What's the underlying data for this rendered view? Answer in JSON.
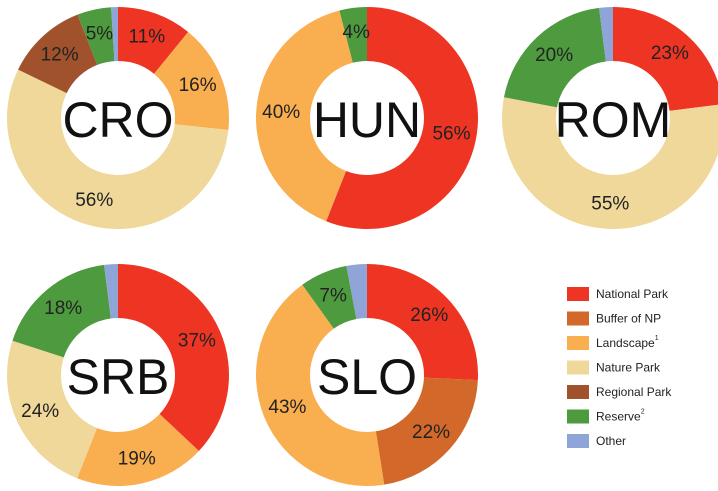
{
  "chart_data": [
    {
      "type": "pie",
      "title": "CRO",
      "categories": [
        "National Park",
        "Landscape",
        "Nature Park",
        "Regional Park",
        "Reserve",
        "Other"
      ],
      "values": [
        11,
        16,
        56,
        12,
        5,
        1
      ],
      "value_labels": [
        "11%",
        "16%",
        "56%",
        "12%",
        "5%",
        null
      ],
      "colors": [
        "#ee3524",
        "#f9ae4f",
        "#efd89a",
        "#a0522d",
        "#4e9a3f",
        "#8fa5d8"
      ]
    },
    {
      "type": "pie",
      "title": "HUN",
      "categories": [
        "National Park",
        "Landscape",
        "Reserve"
      ],
      "values": [
        56,
        40,
        4
      ],
      "value_labels": [
        "56%",
        "40%",
        "4%"
      ],
      "colors": [
        "#ee3524",
        "#f9ae4f",
        "#4e9a3f"
      ]
    },
    {
      "type": "pie",
      "title": "ROM",
      "categories": [
        "National Park",
        "Nature Park",
        "Reserve",
        "Other"
      ],
      "values": [
        23,
        55,
        20,
        2
      ],
      "value_labels": [
        "23%",
        "55%",
        "20%",
        null
      ],
      "colors": [
        "#ee3524",
        "#efd89a",
        "#4e9a3f",
        "#8fa5d8"
      ]
    },
    {
      "type": "pie",
      "title": "SRB",
      "categories": [
        "National Park",
        "Landscape",
        "Nature Park",
        "Reserve",
        "Other"
      ],
      "values": [
        37,
        19,
        24,
        18,
        2
      ],
      "value_labels": [
        "37%",
        "19%",
        "24%",
        "18%",
        null
      ],
      "colors": [
        "#ee3524",
        "#f9ae4f",
        "#efd89a",
        "#4e9a3f",
        "#8fa5d8"
      ]
    },
    {
      "type": "pie",
      "title": "SLO",
      "categories": [
        "National Park",
        "Buffer of NP",
        "Landscape",
        "Reserve",
        "Other"
      ],
      "values": [
        26,
        22,
        43,
        7,
        3
      ],
      "value_labels": [
        "26%",
        "22%",
        "43%",
        "7%",
        null
      ],
      "colors": [
        "#ee3524",
        "#d2692a",
        "#f9ae4f",
        "#4e9a3f",
        "#8fa5d8"
      ]
    }
  ],
  "legend": {
    "items": [
      {
        "name": "National Park",
        "color": "#ee3524"
      },
      {
        "name": "Buffer of NP",
        "color": "#d2692a"
      },
      {
        "name": "Landscape",
        "sup": "1",
        "color": "#f9ae4f"
      },
      {
        "name": "Nature Park",
        "color": "#efd89a"
      },
      {
        "name": "Regional Park",
        "color": "#a0522d"
      },
      {
        "name": "Reserve",
        "sup": "2",
        "color": "#4e9a3f"
      },
      {
        "name": "Other",
        "color": "#8fa5d8"
      }
    ]
  }
}
